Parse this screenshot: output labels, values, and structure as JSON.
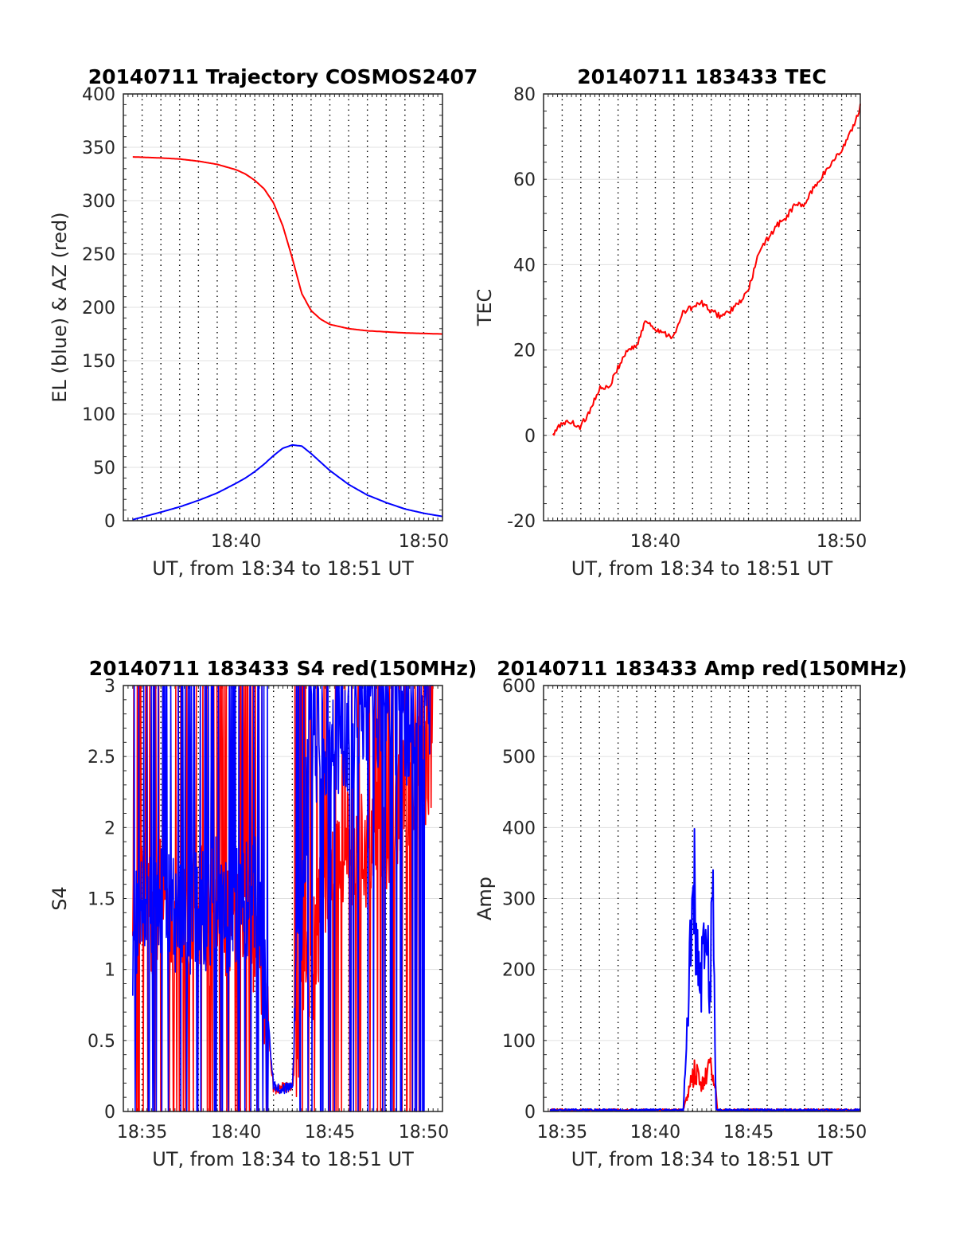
{
  "chart_data": [
    {
      "type": "line",
      "title": "20140711 Trajectory COSMOS2407",
      "xlabel": "UT, from 18:34 to 18:51 UT",
      "ylabel": "EL (blue) & AZ (red)",
      "xlim": [
        "18:34:00",
        "18:51:00"
      ],
      "ylim": [
        0,
        400
      ],
      "x_ticks": [
        "18:40",
        "18:50"
      ],
      "y_ticks": [
        0,
        50,
        100,
        150,
        200,
        250,
        300,
        350,
        400
      ],
      "grid": "dotted vertical every 1 min, light horizontal",
      "series": [
        {
          "color": "#ff0000",
          "x": [
            "18:34:30",
            "18:36:00",
            "18:37:00",
            "18:38:00",
            "18:39:00",
            "18:40:00",
            "18:40:30",
            "18:41:00",
            "18:41:30",
            "18:42:00",
            "18:42:30",
            "18:43:00",
            "18:43:30",
            "18:44:00",
            "18:44:30",
            "18:45:00",
            "18:46:00",
            "18:47:00",
            "18:48:00",
            "18:49:00",
            "18:50:00",
            "18:51:00"
          ],
          "values": [
            341,
            340,
            339,
            337,
            334,
            329,
            325,
            319,
            311,
            298,
            276,
            246,
            213,
            197,
            189,
            184,
            180,
            178,
            177,
            176,
            175.5,
            175
          ]
        },
        {
          "color": "#0000ff",
          "x": [
            "18:34:30",
            "18:36:00",
            "18:37:00",
            "18:38:00",
            "18:39:00",
            "18:40:00",
            "18:40:30",
            "18:41:00",
            "18:41:30",
            "18:42:00",
            "18:42:30",
            "18:43:00",
            "18:43:30",
            "18:44:00",
            "18:44:30",
            "18:45:00",
            "18:46:00",
            "18:47:00",
            "18:48:00",
            "18:49:00",
            "18:50:00",
            "18:51:00"
          ],
          "values": [
            1,
            8,
            13,
            19,
            26,
            35,
            40,
            46,
            53,
            61,
            68,
            71,
            70,
            63,
            55,
            47,
            34,
            24,
            17,
            11,
            7,
            4
          ]
        }
      ]
    },
    {
      "type": "line",
      "title": "20140711 183433 TEC",
      "xlabel": "UT, from 18:34 to 18:51 UT",
      "ylabel": "TEC",
      "xlim": [
        "18:34:00",
        "18:51:00"
      ],
      "ylim": [
        -20,
        80
      ],
      "x_ticks": [
        "18:40",
        "18:50"
      ],
      "y_ticks": [
        -20,
        0,
        20,
        40,
        60,
        80
      ],
      "grid": "dotted vertical every 1 min, light horizontal",
      "series": [
        {
          "color": "#ff0000",
          "x": [
            "18:34:30",
            "18:35:00",
            "18:35:30",
            "18:36:00",
            "18:36:30",
            "18:37:00",
            "18:37:30",
            "18:38:00",
            "18:38:30",
            "18:39:00",
            "18:39:30",
            "18:40:00",
            "18:40:30",
            "18:41:00",
            "18:41:30",
            "18:42:00",
            "18:42:30",
            "18:43:00",
            "18:43:30",
            "18:44:00",
            "18:44:30",
            "18:45:00",
            "18:45:30",
            "18:46:00",
            "18:46:30",
            "18:47:00",
            "18:47:30",
            "18:48:00",
            "18:48:30",
            "18:49:00",
            "18:49:30",
            "18:50:00",
            "18:50:30",
            "18:51:00"
          ],
          "values": [
            0,
            3,
            3,
            2,
            6,
            11,
            11,
            16,
            20,
            21,
            27,
            25,
            24,
            23,
            29,
            30,
            31,
            29,
            28,
            29,
            31,
            34,
            42,
            46,
            49,
            51,
            54,
            54,
            58,
            61,
            64,
            67,
            71,
            77
          ]
        }
      ]
    },
    {
      "type": "line",
      "title": "20140711 183433 S4 red(150MHz)",
      "xlabel": "UT, from 18:34 to 18:51 UT",
      "ylabel": "S4",
      "xlim": [
        "18:34:00",
        "18:51:00"
      ],
      "ylim": [
        0,
        3
      ],
      "x_ticks": [
        "18:35",
        "18:40",
        "18:45",
        "18:50"
      ],
      "y_ticks": [
        0,
        0.5,
        1,
        1.5,
        2,
        2.5,
        3
      ],
      "grid": "dotted vertical every 1 min, light horizontal",
      "series": [
        {
          "color": "#ff0000",
          "x": [
            "18:34:30",
            "18:35:00",
            "18:35:30",
            "18:36:00",
            "18:36:30",
            "18:37:00",
            "18:37:30",
            "18:38:00",
            "18:38:30",
            "18:39:00",
            "18:39:30",
            "18:40:00",
            "18:40:30",
            "18:41:00",
            "18:41:30",
            "18:42:00",
            "18:42:30",
            "18:43:00",
            "18:43:30",
            "18:44:00",
            "18:44:30",
            "18:45:00",
            "18:46:00",
            "18:47:00",
            "18:48:00",
            "18:49:00",
            "18:50:00",
            "18:50:30"
          ],
          "values": [
            1.3,
            1.6,
            1.4,
            1.5,
            1.3,
            1.4,
            1.4,
            1.5,
            1.3,
            1.4,
            1.4,
            1.5,
            1.3,
            1.2,
            0.9,
            0.15,
            0.18,
            0.16,
            0.8,
            1.0,
            1.4,
            1.6,
            1.9,
            1.8,
            2.0,
            2.2,
            2.4,
            2.6
          ]
        },
        {
          "color": "#0000ff",
          "x": [
            "18:34:30",
            "18:35:00",
            "18:35:30",
            "18:36:00",
            "18:36:30",
            "18:37:00",
            "18:37:30",
            "18:38:00",
            "18:38:30",
            "18:39:00",
            "18:39:30",
            "18:40:00",
            "18:40:30",
            "18:41:00",
            "18:41:30",
            "18:42:00",
            "18:42:30",
            "18:43:00",
            "18:43:30",
            "18:44:00",
            "18:44:30",
            "18:45:00",
            "18:46:00",
            "18:47:00",
            "18:48:00",
            "18:49:00",
            "18:50:00",
            "18:50:30"
          ],
          "values": [
            1.2,
            1.6,
            1.3,
            1.4,
            1.5,
            1.3,
            1.4,
            1.5,
            1.3,
            1.6,
            1.4,
            1.4,
            1.5,
            1.6,
            1.0,
            0.18,
            0.16,
            0.18,
            1.5,
            2.8,
            2.5,
            2.7,
            2.6,
            2.9,
            2.8,
            2.7,
            2.9,
            3.0
          ]
        }
      ]
    },
    {
      "type": "line",
      "title": "20140711 183433 Amp red(150MHz)",
      "xlabel": "UT, from 18:34 to 18:51 UT",
      "ylabel": "Amp",
      "xlim": [
        "18:34:00",
        "18:51:00"
      ],
      "ylim": [
        0,
        600
      ],
      "x_ticks": [
        "18:35",
        "18:40",
        "18:45",
        "18:50"
      ],
      "y_ticks": [
        0,
        100,
        200,
        300,
        400,
        500,
        600
      ],
      "grid": "dotted vertical every 1 min, light horizontal",
      "series": [
        {
          "color": "#ff0000",
          "x": [
            "18:34:20",
            "18:41:30",
            "18:41:45",
            "18:42:00",
            "18:42:10",
            "18:42:20",
            "18:42:30",
            "18:42:40",
            "18:42:50",
            "18:43:00",
            "18:43:10",
            "18:43:20",
            "18:51:00"
          ],
          "values": [
            2,
            2,
            30,
            60,
            70,
            55,
            50,
            60,
            80,
            70,
            60,
            2,
            2
          ]
        },
        {
          "color": "#0000ff",
          "x": [
            "18:34:20",
            "18:41:30",
            "18:41:45",
            "18:42:00",
            "18:42:05",
            "18:42:15",
            "18:42:25",
            "18:42:35",
            "18:42:45",
            "18:42:55",
            "18:43:05",
            "18:43:15",
            "18:51:00"
          ],
          "values": [
            2,
            2,
            150,
            400,
            380,
            250,
            200,
            290,
            300,
            200,
            350,
            2,
            2
          ]
        }
      ]
    }
  ]
}
